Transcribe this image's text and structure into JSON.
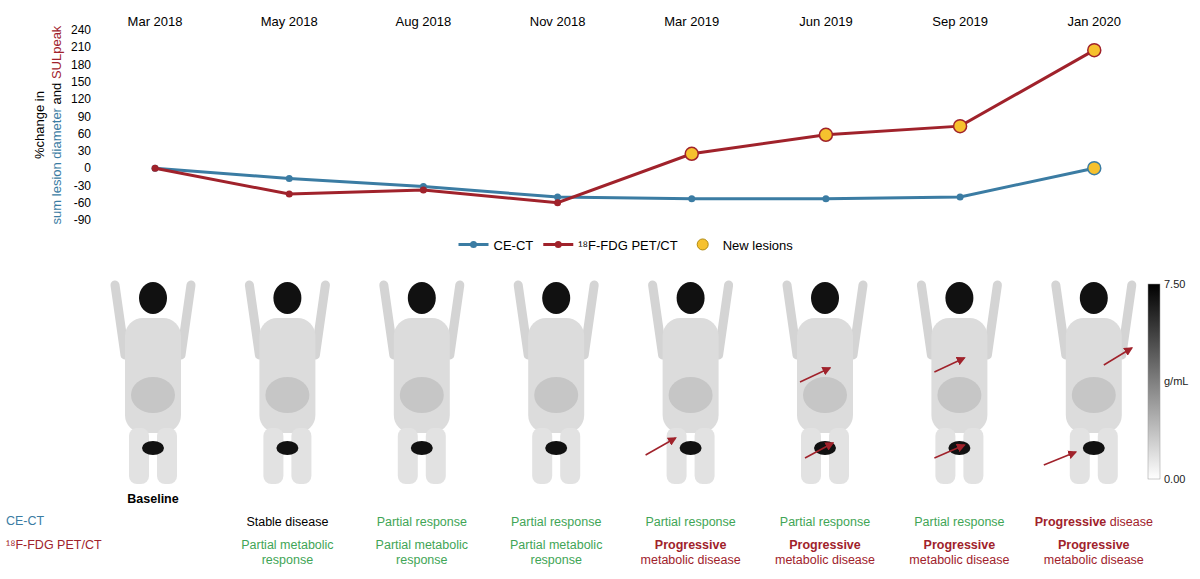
{
  "chart_data": {
    "type": "line",
    "x": [
      "Mar 2018",
      "May 2018",
      "Aug 2018",
      "Nov 2018",
      "Mar 2019",
      "Jun 2019",
      "Sep 2019",
      "Jan 2020"
    ],
    "series": [
      {
        "name": "CE-CT",
        "color": "#3b7ca3",
        "marker": "circle",
        "values": [
          0,
          -18,
          -32,
          -50,
          -53,
          -53,
          -50,
          0
        ],
        "new_lesions": [
          false,
          false,
          false,
          false,
          false,
          false,
          false,
          true
        ]
      },
      {
        "name": "¹⁸F-FDG PET/CT",
        "color": "#a0222b",
        "marker": "circle",
        "values": [
          0,
          -45,
          -38,
          -60,
          25,
          58,
          73,
          205
        ],
        "new_lesions": [
          false,
          false,
          false,
          false,
          true,
          true,
          true,
          true
        ]
      }
    ],
    "new_lesion_marker": {
      "name": "New lesions",
      "color": "#f6c12e"
    },
    "ylabel": [
      {
        "text": "%change in",
        "color": "#000000"
      },
      {
        "text": "sum lesion diameter",
        "color": "#3b7ca3"
      },
      {
        "text": "and",
        "color": "#000000"
      },
      {
        "text": "SULpeak",
        "color": "#a0222b"
      }
    ],
    "ylim": [
      -90,
      240
    ],
    "yticks": [
      -90,
      -60,
      -30,
      0,
      30,
      60,
      90,
      120,
      150,
      180,
      210,
      240
    ],
    "grid": false,
    "legend": "bottom"
  },
  "panels": [
    {
      "label": "Baseline",
      "ct": null,
      "pet": null
    },
    {
      "label": null,
      "ct": {
        "color": "#000000",
        "parts": [
          {
            "text": "Stable disease",
            "bold": false
          }
        ]
      },
      "pet": {
        "color": "#3fa556",
        "parts": [
          {
            "text": "Partial metabolic response",
            "bold": false
          }
        ]
      }
    },
    {
      "label": null,
      "ct": {
        "color": "#3fa556",
        "parts": [
          {
            "text": "Partial response",
            "bold": false
          }
        ]
      },
      "pet": {
        "color": "#3fa556",
        "parts": [
          {
            "text": "Partial metabolic response",
            "bold": false
          }
        ]
      }
    },
    {
      "label": null,
      "ct": {
        "color": "#3fa556",
        "parts": [
          {
            "text": "Partial response",
            "bold": false
          }
        ]
      },
      "pet": {
        "color": "#3fa556",
        "parts": [
          {
            "text": "Partial metabolic response",
            "bold": false
          }
        ]
      }
    },
    {
      "label": null,
      "ct": {
        "color": "#3fa556",
        "parts": [
          {
            "text": "Partial response",
            "bold": false
          }
        ]
      },
      "pet": {
        "color": "#a0222b",
        "parts": [
          {
            "text": "Progressive",
            "bold": true
          },
          {
            "text": "metabolic disease",
            "bold": false
          }
        ]
      }
    },
    {
      "label": null,
      "ct": {
        "color": "#3fa556",
        "parts": [
          {
            "text": "Partial response",
            "bold": false
          }
        ]
      },
      "pet": {
        "color": "#a0222b",
        "parts": [
          {
            "text": "Progressive",
            "bold": true
          },
          {
            "text": "metabolic disease",
            "bold": false
          }
        ]
      }
    },
    {
      "label": null,
      "ct": {
        "color": "#3fa556",
        "parts": [
          {
            "text": "Partial response",
            "bold": false
          }
        ]
      },
      "pet": {
        "color": "#a0222b",
        "parts": [
          {
            "text": "Progressive",
            "bold": true
          },
          {
            "text": "metabolic disease",
            "bold": false
          }
        ]
      }
    },
    {
      "label": null,
      "ct": {
        "color": "#a0222b",
        "parts": [
          {
            "text": "Progressive",
            "bold": true
          },
          {
            "text": "disease",
            "bold": false
          }
        ]
      },
      "pet": {
        "color": "#a0222b",
        "parts": [
          {
            "text": "Progressive",
            "bold": true
          },
          {
            "text": "metabolic disease",
            "bold": false
          }
        ]
      }
    }
  ],
  "colorbar": {
    "range": [
      0,
      7.5
    ],
    "ticks": [
      {
        "value": 0,
        "label": "0.00"
      },
      {
        "value": 7.5,
        "label": "7.50"
      }
    ],
    "label": "g/mL"
  }
}
